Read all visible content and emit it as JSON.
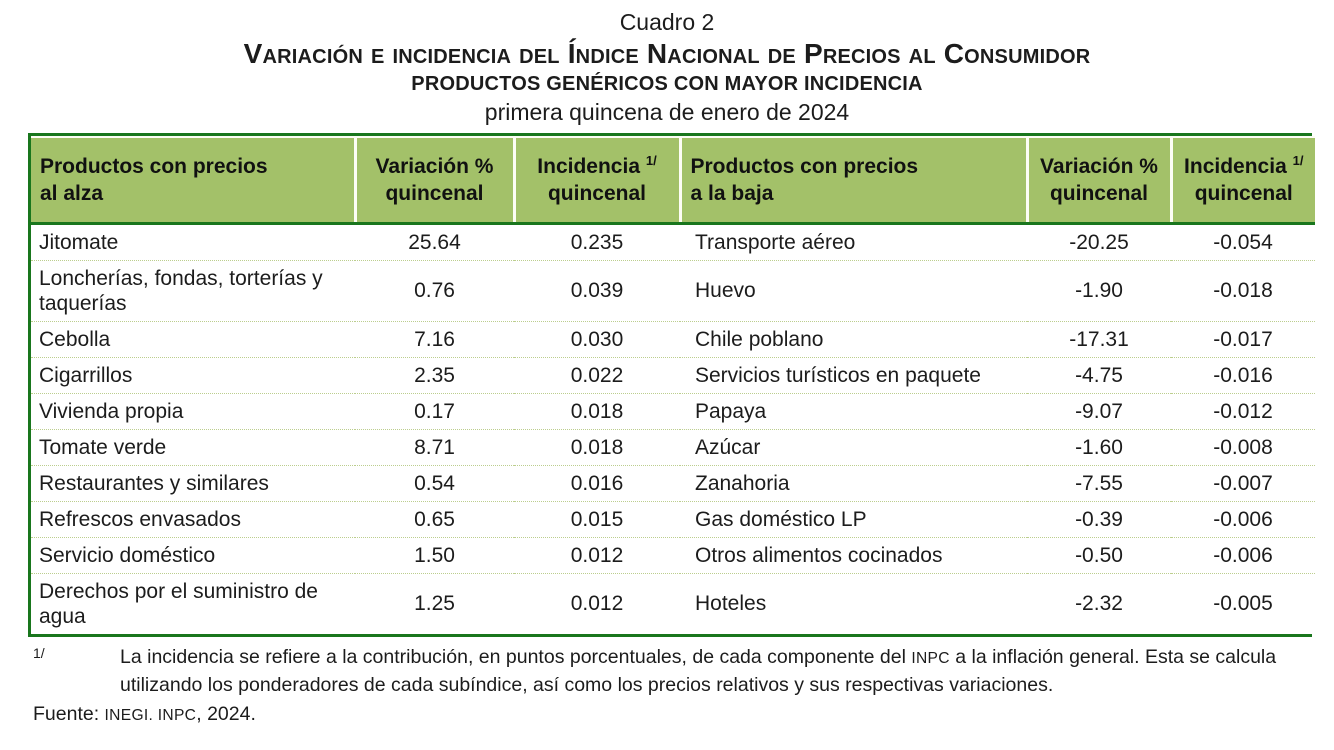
{
  "titles": {
    "cuadro": "Cuadro 2",
    "main": "Variación e incidencia del Índice Nacional de Precios al Consumidor",
    "sub": "PRODUCTOS GENÉRICOS CON MAYOR INCIDENCIA",
    "period": "primera quincena de enero de 2024"
  },
  "table": {
    "headers": {
      "alza": {
        "line1": "Productos con precios",
        "line2": "al alza"
      },
      "baja": {
        "line1": "Productos con precios",
        "line2": "a la baja"
      },
      "variacion": {
        "line1": "Variación %",
        "line2": "quincenal"
      },
      "incidencia": {
        "line1": "Incidencia",
        "sup": "1/",
        "line2": "quincenal"
      }
    },
    "rows": [
      {
        "alza": "Jitomate",
        "alza_var": "25.64",
        "alza_inc": "0.235",
        "baja": "Transporte aéreo",
        "baja_var": "-20.25",
        "baja_inc": "-0.054"
      },
      {
        "alza": "Loncherías, fondas, torterías y taquerías",
        "alza_var": "0.76",
        "alza_inc": "0.039",
        "baja": "Huevo",
        "baja_var": "-1.90",
        "baja_inc": "-0.018"
      },
      {
        "alza": "Cebolla",
        "alza_var": "7.16",
        "alza_inc": "0.030",
        "baja": "Chile poblano",
        "baja_var": "-17.31",
        "baja_inc": "-0.017"
      },
      {
        "alza": "Cigarrillos",
        "alza_var": "2.35",
        "alza_inc": "0.022",
        "baja": "Servicios turísticos en paquete",
        "baja_var": "-4.75",
        "baja_inc": "-0.016"
      },
      {
        "alza": "Vivienda propia",
        "alza_var": "0.17",
        "alza_inc": "0.018",
        "baja": "Papaya",
        "baja_var": "-9.07",
        "baja_inc": "-0.012"
      },
      {
        "alza": "Tomate verde",
        "alza_var": "8.71",
        "alza_inc": "0.018",
        "baja": "Azúcar",
        "baja_var": "-1.60",
        "baja_inc": "-0.008"
      },
      {
        "alza": "Restaurantes y similares",
        "alza_var": "0.54",
        "alza_inc": "0.016",
        "baja": "Zanahoria",
        "baja_var": "-7.55",
        "baja_inc": "-0.007"
      },
      {
        "alza": "Refrescos envasados",
        "alza_var": "0.65",
        "alza_inc": "0.015",
        "baja": "Gas doméstico LP",
        "baja_var": "-0.39",
        "baja_inc": "-0.006"
      },
      {
        "alza": "Servicio doméstico",
        "alza_var": "1.50",
        "alza_inc": "0.012",
        "baja": "Otros alimentos cocinados",
        "baja_var": "-0.50",
        "baja_inc": "-0.006"
      },
      {
        "alza": "Derechos por el suministro de agua",
        "alza_var": "1.25",
        "alza_inc": "0.012",
        "baja": "Hoteles",
        "baja_var": "-2.32",
        "baja_inc": "-0.005"
      }
    ]
  },
  "footnote": {
    "marker": "1/",
    "text_before": "La incidencia se refiere a la contribución, en puntos porcentuales, de cada componente del ",
    "acronym": "INPC",
    "text_after": " a la inflación general. Esta se calcula utilizando los ponderadores de cada subíndice, así como los precios relativos y sus respectivas variaciones."
  },
  "source": {
    "prefix": "Fuente: ",
    "acronyms": "INEGI. INPC",
    "suffix": ", 2024."
  },
  "colors": {
    "header_bg": "#a3c169",
    "border_green": "#19761d",
    "row_divider": "#bcce8e",
    "text": "#1c1c1c"
  }
}
